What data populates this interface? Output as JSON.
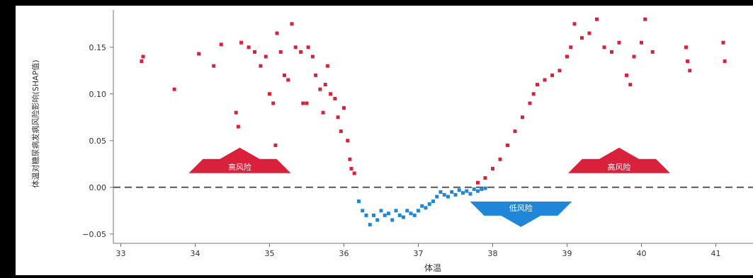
{
  "chart_data": {
    "type": "scatter",
    "title": "",
    "xlabel": "体温",
    "ylabel": "体温对糖尿病发病风险影响(SHAP值)",
    "xlim": [
      32.9,
      41.5
    ],
    "ylim": [
      -0.06,
      0.19
    ],
    "x_ticks": [
      {
        "value": 33,
        "label": "33"
      },
      {
        "value": 34,
        "label": "34"
      },
      {
        "value": 35,
        "label": "35"
      },
      {
        "value": 36,
        "label": "36"
      },
      {
        "value": 37,
        "label": "37"
      },
      {
        "value": 38,
        "label": "38"
      },
      {
        "value": 39,
        "label": "39"
      },
      {
        "value": 40,
        "label": "40"
      },
      {
        "value": 41,
        "label": "41"
      }
    ],
    "y_ticks": [
      {
        "value": 0.15,
        "label": "0.15"
      },
      {
        "value": 0.1,
        "label": "0.10"
      },
      {
        "value": 0.05,
        "label": "0.05"
      },
      {
        "value": 0.0,
        "label": "0.00"
      },
      {
        "value": -0.05,
        "label": "−0.05"
      }
    ],
    "reference_line": {
      "y": 0.0,
      "style": "dashed"
    },
    "colors": {
      "positive": "#d9213b",
      "negative": "#1f86d9",
      "reference": "#555555",
      "plot_bg": "#ffffff"
    },
    "series": [
      {
        "color": "#d9213b",
        "points": [
          [
            33.28,
            0.135
          ],
          [
            33.3,
            0.14
          ],
          [
            33.72,
            0.105
          ],
          [
            34.05,
            0.143
          ],
          [
            34.25,
            0.13
          ],
          [
            34.35,
            0.153
          ],
          [
            34.55,
            0.08
          ],
          [
            34.58,
            0.065
          ],
          [
            34.62,
            0.155
          ],
          [
            34.72,
            0.15
          ],
          [
            34.8,
            0.145
          ],
          [
            34.88,
            0.13
          ],
          [
            34.95,
            0.14
          ],
          [
            35.0,
            0.1
          ],
          [
            35.05,
            0.09
          ],
          [
            35.08,
            0.045
          ],
          [
            35.1,
            0.165
          ],
          [
            35.15,
            0.145
          ],
          [
            35.2,
            0.12
          ],
          [
            35.25,
            0.115
          ],
          [
            35.3,
            0.175
          ],
          [
            35.35,
            0.15
          ],
          [
            35.42,
            0.145
          ],
          [
            35.45,
            0.09
          ],
          [
            35.5,
            0.09
          ],
          [
            35.52,
            0.15
          ],
          [
            35.58,
            0.14
          ],
          [
            35.62,
            0.12
          ],
          [
            35.68,
            0.105
          ],
          [
            35.72,
            0.08
          ],
          [
            35.75,
            0.11
          ],
          [
            35.78,
            0.13
          ],
          [
            35.82,
            0.1
          ],
          [
            35.88,
            0.095
          ],
          [
            35.92,
            0.075
          ],
          [
            35.96,
            0.06
          ],
          [
            36.0,
            0.085
          ],
          [
            36.05,
            0.05
          ],
          [
            36.08,
            0.03
          ],
          [
            36.1,
            0.02
          ],
          [
            36.14,
            0.015
          ],
          [
            37.8,
            0.005
          ],
          [
            37.9,
            0.01
          ],
          [
            38.0,
            0.02
          ],
          [
            38.1,
            0.03
          ],
          [
            38.2,
            0.045
          ],
          [
            38.3,
            0.06
          ],
          [
            38.4,
            0.075
          ],
          [
            38.5,
            0.09
          ],
          [
            38.55,
            0.1
          ],
          [
            38.6,
            0.11
          ],
          [
            38.7,
            0.115
          ],
          [
            38.8,
            0.12
          ],
          [
            38.9,
            0.125
          ],
          [
            39.0,
            0.14
          ],
          [
            39.05,
            0.15
          ],
          [
            39.1,
            0.175
          ],
          [
            39.2,
            0.16
          ],
          [
            39.3,
            0.165
          ],
          [
            39.4,
            0.18
          ],
          [
            39.5,
            0.15
          ],
          [
            39.6,
            0.145
          ],
          [
            39.7,
            0.155
          ],
          [
            39.8,
            0.12
          ],
          [
            39.85,
            0.11
          ],
          [
            39.9,
            0.14
          ],
          [
            40.0,
            0.155
          ],
          [
            40.05,
            0.18
          ],
          [
            40.15,
            0.145
          ],
          [
            40.6,
            0.15
          ],
          [
            40.62,
            0.135
          ],
          [
            40.65,
            0.125
          ],
          [
            41.1,
            0.155
          ],
          [
            41.12,
            0.135
          ]
        ]
      },
      {
        "color": "#1f86d9",
        "points": [
          [
            36.2,
            -0.015
          ],
          [
            36.25,
            -0.025
          ],
          [
            36.3,
            -0.03
          ],
          [
            36.35,
            -0.04
          ],
          [
            36.4,
            -0.03
          ],
          [
            36.45,
            -0.035
          ],
          [
            36.5,
            -0.025
          ],
          [
            36.55,
            -0.03
          ],
          [
            36.6,
            -0.028
          ],
          [
            36.65,
            -0.035
          ],
          [
            36.7,
            -0.025
          ],
          [
            36.75,
            -0.03
          ],
          [
            36.8,
            -0.032
          ],
          [
            36.85,
            -0.025
          ],
          [
            36.9,
            -0.028
          ],
          [
            36.95,
            -0.03
          ],
          [
            37.0,
            -0.025
          ],
          [
            37.05,
            -0.02
          ],
          [
            37.1,
            -0.022
          ],
          [
            37.15,
            -0.018
          ],
          [
            37.2,
            -0.015
          ],
          [
            37.25,
            -0.01
          ],
          [
            37.3,
            -0.005
          ],
          [
            37.35,
            -0.008
          ],
          [
            37.4,
            -0.01
          ],
          [
            37.45,
            -0.005
          ],
          [
            37.5,
            -0.008
          ],
          [
            37.55,
            -0.003
          ],
          [
            37.6,
            -0.006
          ],
          [
            37.65,
            -0.004
          ],
          [
            37.7,
            -0.007
          ],
          [
            37.75,
            -0.002
          ],
          [
            37.8,
            -0.004
          ],
          [
            37.85,
            -0.002
          ],
          [
            37.9,
            -0.001
          ]
        ]
      }
    ],
    "annotations": [
      {
        "text": "高风险",
        "direction": "up",
        "color": "#d9213b",
        "x": 34.6,
        "y": 0.022
      },
      {
        "text": "低风险",
        "direction": "down",
        "color": "#1f86d9",
        "x": 38.38,
        "y": -0.022
      },
      {
        "text": "高风险",
        "direction": "up",
        "color": "#d9213b",
        "x": 39.7,
        "y": 0.022
      }
    ]
  }
}
